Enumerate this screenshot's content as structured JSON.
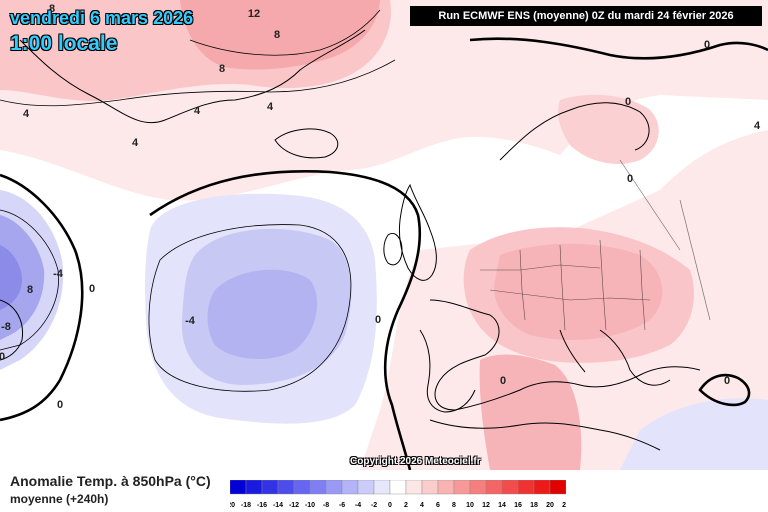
{
  "header": {
    "date": "vendredi 6 mars 2026",
    "time": "1:00 locale",
    "run": "Run ECMWF ENS (moyenne) 0Z du mardi 24 février 2026"
  },
  "copyright": "Copyright 2026 Meteociel.fr",
  "legend": {
    "title": "Anomalie Temp. à 850hPa (°C)",
    "subtitle": "moyenne  (+240h)",
    "ticks": [
      "-20",
      "-18",
      "-16",
      "-14",
      "-12",
      "-10",
      "-8",
      "-6",
      "-4",
      "-2",
      "0",
      "2",
      "4",
      "6",
      "8",
      "10",
      "12",
      "14",
      "16",
      "18",
      "20",
      "22"
    ],
    "colors": [
      "#0000d6",
      "#1a1adf",
      "#3333e6",
      "#4d4dec",
      "#6666f0",
      "#7f7ff3",
      "#9999f6",
      "#b3b3f8",
      "#ccccfa",
      "#e6e6fc",
      "#ffffff",
      "#fde6e6",
      "#fbcccc",
      "#f9b3b3",
      "#f79999",
      "#f57f7f",
      "#f36666",
      "#f14d4d",
      "#ef3333",
      "#ed1a1a",
      "#e00000"
    ]
  },
  "contour_labels": [
    "8",
    "12",
    "8",
    "8",
    "4",
    "4",
    "4",
    "4",
    "0",
    "0",
    "4",
    "0",
    "0",
    "-4",
    "-4",
    "8",
    "-8",
    "0",
    "0",
    "0",
    "0",
    "0"
  ],
  "accent_colors": {
    "title_text": "#33ccff",
    "warm_fill": "#f6a9ad",
    "cold_fill": "#a9a9f3"
  }
}
